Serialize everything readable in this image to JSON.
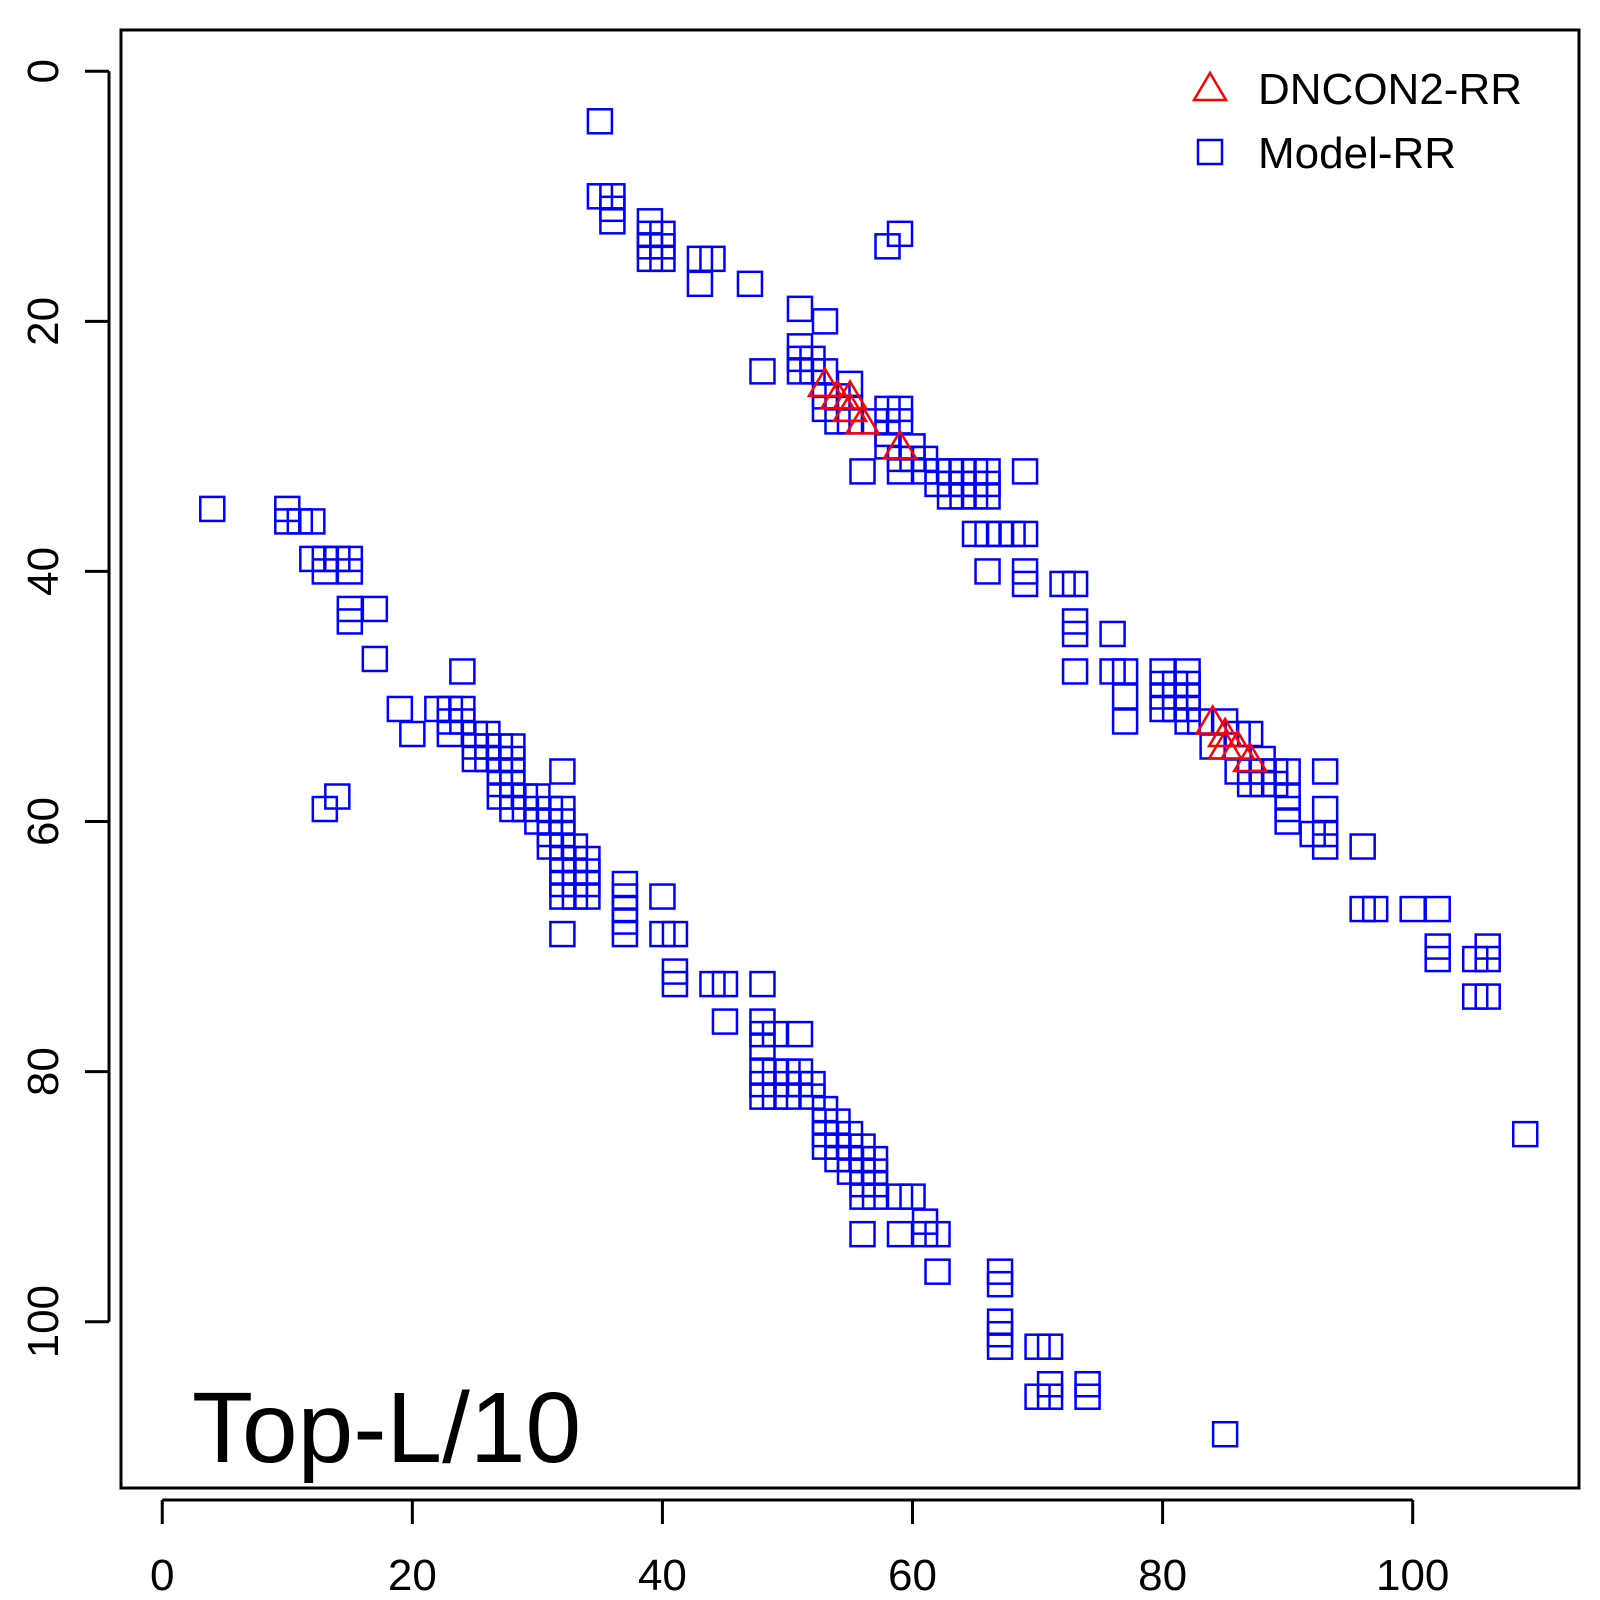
{
  "chart_data": {
    "type": "scatter",
    "title": "",
    "xlabel": "",
    "ylabel": "",
    "annotation": "Top-L/10",
    "xlim": [
      -3.3,
      113.3
    ],
    "ylim": [
      113.3,
      -3.3
    ],
    "y_reversed": true,
    "x_ticks": [
      "0",
      "20",
      "40",
      "60",
      "80",
      "100"
    ],
    "y_ticks": [
      "0",
      "20",
      "40",
      "60",
      "80",
      "100"
    ],
    "grid": false,
    "legend_position": "top-right",
    "series": [
      {
        "name": "DNCON2-RR",
        "marker": "triangle",
        "color": "#ff0000",
        "points": [
          [
            53,
            25
          ],
          [
            54,
            26
          ],
          [
            55,
            26
          ],
          [
            55,
            27
          ],
          [
            56,
            28
          ],
          [
            59,
            30
          ],
          [
            84,
            52
          ],
          [
            85,
            53
          ],
          [
            85,
            54
          ],
          [
            86,
            54
          ],
          [
            87,
            55
          ]
        ]
      },
      {
        "name": "Model-RR",
        "marker": "square",
        "color": "#0000ff",
        "points": [
          [
            35,
            4
          ],
          [
            35,
            10
          ],
          [
            36,
            10
          ],
          [
            36,
            11
          ],
          [
            36,
            12
          ],
          [
            39,
            12
          ],
          [
            39,
            13
          ],
          [
            40,
            13
          ],
          [
            39,
            14
          ],
          [
            40,
            14
          ],
          [
            39,
            15
          ],
          [
            40,
            15
          ],
          [
            43,
            15
          ],
          [
            44,
            15
          ],
          [
            43,
            17
          ],
          [
            47,
            17
          ],
          [
            59,
            13
          ],
          [
            58,
            14
          ],
          [
            51,
            19
          ],
          [
            53,
            20
          ],
          [
            51,
            22
          ],
          [
            51,
            23
          ],
          [
            52,
            23
          ],
          [
            51,
            24
          ],
          [
            52,
            24
          ],
          [
            48,
            24
          ],
          [
            53,
            24
          ],
          [
            53,
            26
          ],
          [
            54,
            26
          ],
          [
            55,
            25
          ],
          [
            53,
            27
          ],
          [
            55,
            27
          ],
          [
            54,
            28
          ],
          [
            55,
            28
          ],
          [
            58,
            27
          ],
          [
            59,
            27
          ],
          [
            57,
            28
          ],
          [
            58,
            29
          ],
          [
            59,
            28
          ],
          [
            58,
            30
          ],
          [
            59,
            31
          ],
          [
            60,
            30
          ],
          [
            59,
            32
          ],
          [
            56,
            32
          ],
          [
            60,
            31
          ],
          [
            61,
            31
          ],
          [
            62,
            32
          ],
          [
            61,
            32
          ],
          [
            62,
            33
          ],
          [
            63,
            32
          ],
          [
            63,
            33
          ],
          [
            63,
            34
          ],
          [
            64,
            32
          ],
          [
            64,
            33
          ],
          [
            64,
            34
          ],
          [
            65,
            32
          ],
          [
            65,
            33
          ],
          [
            65,
            34
          ],
          [
            66,
            32
          ],
          [
            66,
            33
          ],
          [
            66,
            34
          ],
          [
            69,
            32
          ],
          [
            65,
            37
          ],
          [
            66,
            37
          ],
          [
            67,
            37
          ],
          [
            68,
            37
          ],
          [
            69,
            37
          ],
          [
            66,
            40
          ],
          [
            69,
            40
          ],
          [
            69,
            41
          ],
          [
            72,
            41
          ],
          [
            73,
            41
          ],
          [
            73,
            44
          ],
          [
            73,
            45
          ],
          [
            73,
            48
          ],
          [
            76,
            45
          ],
          [
            76,
            48
          ],
          [
            77,
            48
          ],
          [
            77,
            50
          ],
          [
            77,
            52
          ],
          [
            80,
            48
          ],
          [
            80,
            49
          ],
          [
            80,
            50
          ],
          [
            80,
            51
          ],
          [
            81,
            49
          ],
          [
            81,
            50
          ],
          [
            81,
            51
          ],
          [
            82,
            48
          ],
          [
            82,
            49
          ],
          [
            82,
            50
          ],
          [
            82,
            51
          ],
          [
            82,
            52
          ],
          [
            83,
            52
          ],
          [
            84,
            54
          ],
          [
            85,
            52
          ],
          [
            86,
            53
          ],
          [
            86,
            56
          ],
          [
            87,
            53
          ],
          [
            87,
            56
          ],
          [
            87,
            57
          ],
          [
            88,
            55
          ],
          [
            88,
            56
          ],
          [
            88,
            57
          ],
          [
            89,
            56
          ],
          [
            89,
            57
          ],
          [
            90,
            56
          ],
          [
            90,
            58
          ],
          [
            90,
            59
          ],
          [
            90,
            60
          ],
          [
            93,
            56
          ],
          [
            93,
            59
          ],
          [
            93,
            61
          ],
          [
            93,
            62
          ],
          [
            92,
            61
          ],
          [
            96,
            62
          ],
          [
            96,
            67
          ],
          [
            97,
            67
          ],
          [
            100,
            67
          ],
          [
            102,
            67
          ],
          [
            102,
            70
          ],
          [
            102,
            71
          ],
          [
            105,
            71
          ],
          [
            106,
            70
          ],
          [
            106,
            71
          ],
          [
            105,
            74
          ],
          [
            106,
            74
          ],
          [
            109,
            85
          ],
          [
            4,
            35
          ],
          [
            10,
            35
          ],
          [
            10,
            36
          ],
          [
            11,
            36
          ],
          [
            12,
            36
          ],
          [
            12,
            39
          ],
          [
            13,
            39
          ],
          [
            13,
            40
          ],
          [
            14,
            39
          ],
          [
            15,
            39
          ],
          [
            15,
            40
          ],
          [
            15,
            43
          ],
          [
            15,
            44
          ],
          [
            17,
            43
          ],
          [
            17,
            47
          ],
          [
            24,
            48
          ],
          [
            19,
            51
          ],
          [
            20,
            53
          ],
          [
            22,
            51
          ],
          [
            23,
            51
          ],
          [
            23,
            52
          ],
          [
            23,
            53
          ],
          [
            24,
            51
          ],
          [
            24,
            52
          ],
          [
            25,
            53
          ],
          [
            25,
            54
          ],
          [
            25,
            55
          ],
          [
            26,
            53
          ],
          [
            26,
            54
          ],
          [
            26,
            55
          ],
          [
            27,
            54
          ],
          [
            27,
            55
          ],
          [
            27,
            56
          ],
          [
            27,
            57
          ],
          [
            27,
            58
          ],
          [
            28,
            54
          ],
          [
            28,
            55
          ],
          [
            28,
            56
          ],
          [
            28,
            57
          ],
          [
            28,
            58
          ],
          [
            28,
            59
          ],
          [
            29,
            58
          ],
          [
            29,
            59
          ],
          [
            30,
            58
          ],
          [
            30,
            60
          ],
          [
            31,
            59
          ],
          [
            31,
            60
          ],
          [
            31,
            61
          ],
          [
            31,
            62
          ],
          [
            32,
            56
          ],
          [
            32,
            59
          ],
          [
            32,
            60
          ],
          [
            32,
            61
          ],
          [
            32,
            62
          ],
          [
            32,
            63
          ],
          [
            32,
            64
          ],
          [
            32,
            65
          ],
          [
            32,
            66
          ],
          [
            33,
            62
          ],
          [
            33,
            63
          ],
          [
            33,
            64
          ],
          [
            33,
            65
          ],
          [
            33,
            66
          ],
          [
            34,
            63
          ],
          [
            34,
            64
          ],
          [
            34,
            65
          ],
          [
            34,
            66
          ],
          [
            14,
            58
          ],
          [
            13,
            59
          ],
          [
            32,
            69
          ],
          [
            37,
            65
          ],
          [
            37,
            66
          ],
          [
            37,
            67
          ],
          [
            37,
            68
          ],
          [
            37,
            69
          ],
          [
            40,
            66
          ],
          [
            40,
            69
          ],
          [
            41,
            69
          ],
          [
            41,
            72
          ],
          [
            41,
            73
          ],
          [
            44,
            73
          ],
          [
            45,
            73
          ],
          [
            45,
            76
          ],
          [
            48,
            73
          ],
          [
            48,
            76
          ],
          [
            48,
            77
          ],
          [
            48,
            78
          ],
          [
            49,
            77
          ],
          [
            51,
            77
          ],
          [
            48,
            80
          ],
          [
            48,
            81
          ],
          [
            48,
            82
          ],
          [
            49,
            80
          ],
          [
            49,
            82
          ],
          [
            50,
            80
          ],
          [
            50,
            81
          ],
          [
            50,
            82
          ],
          [
            51,
            80
          ],
          [
            51,
            81
          ],
          [
            52,
            81
          ],
          [
            52,
            82
          ],
          [
            53,
            83
          ],
          [
            53,
            84
          ],
          [
            53,
            85
          ],
          [
            53,
            86
          ],
          [
            54,
            84
          ],
          [
            54,
            85
          ],
          [
            54,
            86
          ],
          [
            54,
            87
          ],
          [
            55,
            85
          ],
          [
            55,
            86
          ],
          [
            55,
            87
          ],
          [
            55,
            88
          ],
          [
            56,
            86
          ],
          [
            56,
            87
          ],
          [
            56,
            88
          ],
          [
            56,
            89
          ],
          [
            56,
            90
          ],
          [
            57,
            87
          ],
          [
            57,
            88
          ],
          [
            57,
            89
          ],
          [
            57,
            90
          ],
          [
            59,
            90
          ],
          [
            60,
            90
          ],
          [
            61,
            92
          ],
          [
            61,
            93
          ],
          [
            62,
            93
          ],
          [
            56,
            93
          ],
          [
            59,
            93
          ],
          [
            62,
            96
          ],
          [
            67,
            96
          ],
          [
            67,
            97
          ],
          [
            67,
            100
          ],
          [
            67,
            101
          ],
          [
            67,
            102
          ],
          [
            70,
            102
          ],
          [
            71,
            102
          ],
          [
            70,
            106
          ],
          [
            71,
            105
          ],
          [
            71,
            106
          ],
          [
            74,
            105
          ],
          [
            74,
            106
          ],
          [
            85,
            109
          ]
        ]
      }
    ]
  }
}
